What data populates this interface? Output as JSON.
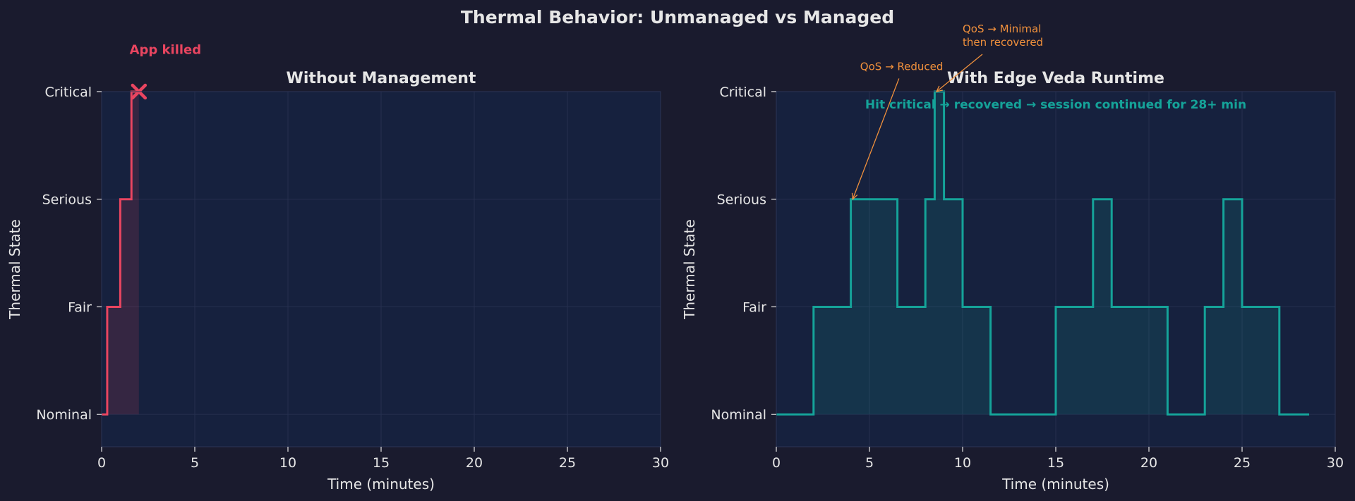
{
  "figure_title": "Thermal Behavior: Unmanaged vs Managed",
  "colors": {
    "background": "#1a1b2e",
    "axes_background": "#16213e",
    "grid": "#26304f",
    "text": "#e6e6e6",
    "unmanaged": "#e94560",
    "managed": "#15a399",
    "annotation": "#f0903c"
  },
  "chart_data": [
    {
      "type": "line",
      "style": "step",
      "title": "Without Management",
      "xlabel": "Time (minutes)",
      "ylabel": "Thermal State",
      "xlim": [
        0,
        30
      ],
      "ylim": [
        -0.3,
        3.0
      ],
      "xticks": [
        0,
        5,
        10,
        15,
        20,
        25,
        30
      ],
      "xtick_labels": [
        "0",
        "5",
        "10",
        "15",
        "20",
        "25",
        "30"
      ],
      "yticks": [
        0,
        1,
        2,
        3
      ],
      "ytick_labels": [
        "Nominal",
        "Fair",
        "Serious",
        "Critical"
      ],
      "grid": true,
      "series": [
        {
          "color": "#e94560",
          "fill": true,
          "x": [
            0,
            0.3,
            1.0,
            1.6,
            2.0
          ],
          "y": [
            0,
            1,
            2,
            3,
            3
          ]
        }
      ],
      "markers": [
        {
          "symbol": "x",
          "x": 2.0,
          "y": 3,
          "color": "#e94560"
        }
      ],
      "annotations": [
        {
          "text": "App killed",
          "x": 1.5,
          "y": 3.35,
          "color": "#e94560",
          "bold": true
        }
      ]
    },
    {
      "type": "line",
      "style": "step",
      "title": "With Edge Veda Runtime",
      "xlabel": "Time (minutes)",
      "ylabel": "Thermal State",
      "xlim": [
        0,
        30
      ],
      "ylim": [
        -0.3,
        3.0
      ],
      "xticks": [
        0,
        5,
        10,
        15,
        20,
        25,
        30
      ],
      "xtick_labels": [
        "0",
        "5",
        "10",
        "15",
        "20",
        "25",
        "30"
      ],
      "yticks": [
        0,
        1,
        2,
        3
      ],
      "ytick_labels": [
        "Nominal",
        "Fair",
        "Serious",
        "Critical"
      ],
      "grid": true,
      "series": [
        {
          "color": "#15a399",
          "fill": true,
          "x": [
            0,
            2.0,
            4.0,
            6.5,
            8.0,
            8.5,
            9.0,
            10.0,
            11.5,
            15.0,
            17.0,
            18.0,
            21.0,
            23.0,
            24.0,
            25.0,
            27.0,
            28.6
          ],
          "y": [
            0,
            1,
            2,
            1,
            2,
            3,
            2,
            1,
            0,
            1,
            2,
            1,
            0,
            1,
            2,
            1,
            0,
            0
          ]
        }
      ],
      "headline": {
        "text": "Hit critical → recovered → session continued for 28+ min",
        "color": "#15a399"
      },
      "annotations": [
        {
          "lines": [
            "QoS → Reduced"
          ],
          "text_x": 4.5,
          "text_y": 3.2,
          "arrow_to": [
            4.1,
            2.0
          ],
          "color": "#f0903c"
        },
        {
          "lines": [
            "QoS → Minimal",
            "then recovered"
          ],
          "text_x": 10.0,
          "text_y": 3.55,
          "arrow_to": [
            8.6,
            3.0
          ],
          "color": "#f0903c"
        }
      ]
    }
  ]
}
